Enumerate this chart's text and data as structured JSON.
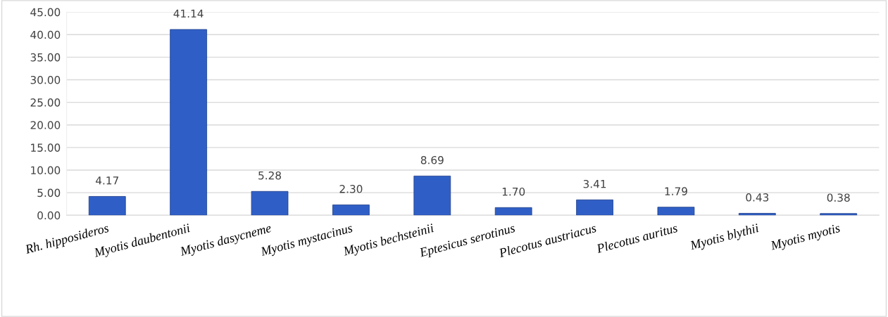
{
  "chart_data": {
    "type": "bar",
    "categories": [
      "Rh. hipposideros",
      "Myotis daubentonii",
      "Myotis dasycneme",
      "Myotis mystacinus",
      "Myotis bechsteinii",
      "Eptesicus serotinus",
      "Plecotus austriacus",
      "Plecotus auritus",
      "Myotis blythii",
      "Myotis myotis"
    ],
    "values": [
      4.17,
      41.14,
      5.28,
      2.3,
      8.69,
      1.7,
      3.41,
      1.79,
      0.43,
      0.38
    ],
    "value_labels": [
      "4.17",
      "41.14",
      "5.28",
      "2.30",
      "8.69",
      "1.70",
      "3.41",
      "1.79",
      "0.43",
      "0.38"
    ],
    "color": "#2f5fc6",
    "ylim": [
      0,
      45
    ],
    "yticks": [
      {
        "value": 0,
        "label": "0.00"
      },
      {
        "value": 5,
        "label": "5.00"
      },
      {
        "value": 10,
        "label": "10.00"
      },
      {
        "value": 15,
        "label": "15.00"
      },
      {
        "value": 20,
        "label": "20.00"
      },
      {
        "value": 25,
        "label": "25.00"
      },
      {
        "value": 30,
        "label": "30.00"
      },
      {
        "value": 35,
        "label": "35.00"
      },
      {
        "value": 40,
        "label": "40.00"
      },
      {
        "value": 45,
        "label": "45.00"
      }
    ],
    "grid": "y"
  }
}
